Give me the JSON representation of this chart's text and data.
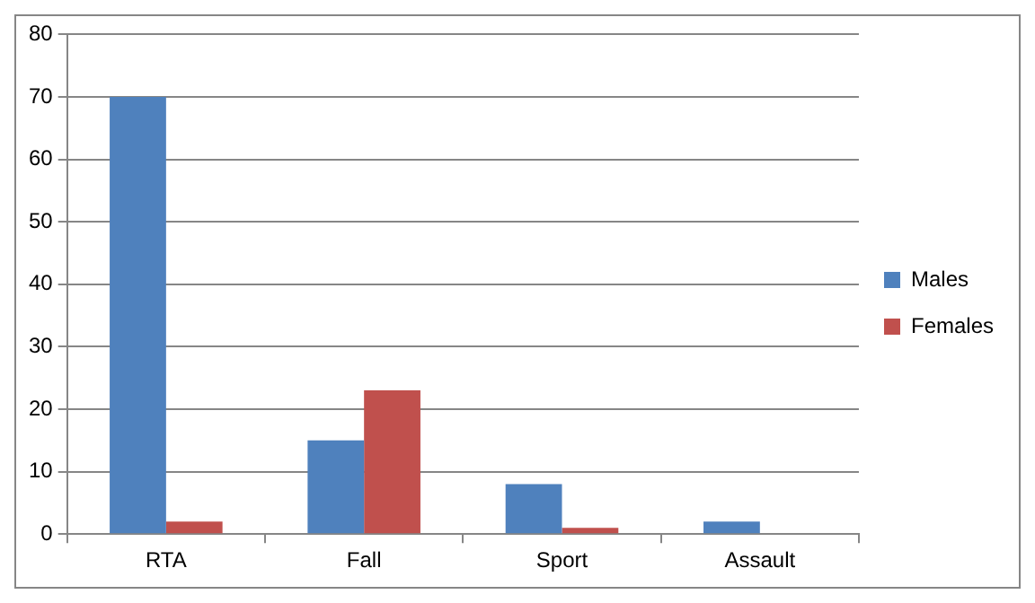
{
  "chart_data": {
    "type": "bar",
    "categories": [
      "RTA",
      "Fall",
      "Sport",
      "Assault"
    ],
    "series": [
      {
        "name": "Males",
        "color": "#4f81bd",
        "values": [
          70,
          15,
          8,
          2
        ]
      },
      {
        "name": "Females",
        "color": "#c0504d",
        "values": [
          2,
          23,
          1,
          0
        ]
      }
    ],
    "ylim": [
      0,
      80
    ],
    "yticks": [
      0,
      10,
      20,
      30,
      40,
      50,
      60,
      70,
      80
    ],
    "grid": "y",
    "legend": "right"
  }
}
